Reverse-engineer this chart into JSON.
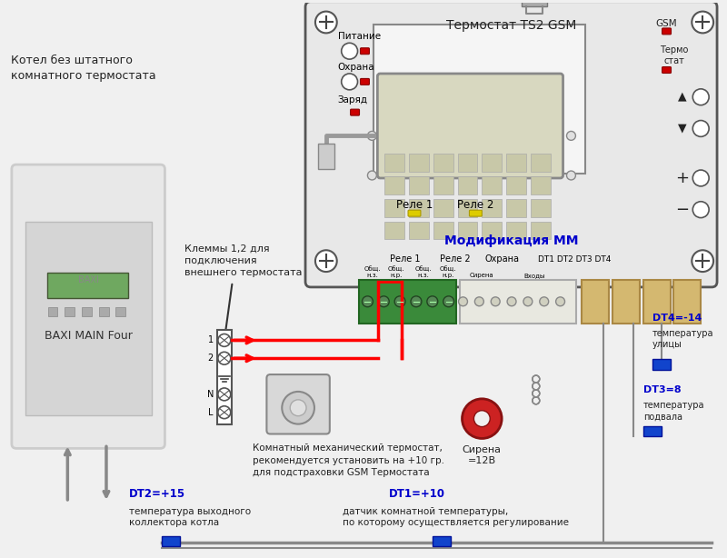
{
  "bg_color": "#f0f0f0",
  "boiler_label": "BAXI MAIN Four",
  "boiler_subtitle": "Котел без штатного\nкомнатного термостата",
  "thermostat_title": "Термостат TS2 GSM",
  "mod_label": "Модификация ММ",
  "pitanie": "Питание",
  "ohrana": "Охрана",
  "zaryad": "Заряд",
  "rele1": "Реле 1",
  "rele2": "Реле 2",
  "ohrana2": "Охрана",
  "gsm_label": "GSM",
  "termo_label": "Термо\nстат",
  "klemmy_label": "Клеммы 1,2 для\nподключения\nвнешнего термостата",
  "sirena_label": "Сирена\n=12В",
  "mech_label": "Комнатный механический термостат,\nрекомендуется установить на +10 гр.\nдля подстраховки GSM Термостата",
  "dt1_label": "DT1=+10",
  "dt1_desc": "датчик комнатной температуры,\nпо которому осуществляется регулирование",
  "dt2_label": "DT2=+15",
  "dt2_desc": "температура выходного\nколлектора котла",
  "dt3_label": "DT3=8",
  "dt3_desc": "температура\nподвала",
  "dt4_label": "DT4=-14",
  "dt4_desc": "температура\nулицы",
  "rele1_bottom": "Реле 1",
  "rele2_bottom": "Реле 2",
  "obsh_nz": "Общ.н.з.",
  "obsh_nr": "Общ.н.р.",
  "sirena_bottom": "Сирена",
  "vhody_bottom": "Входы"
}
